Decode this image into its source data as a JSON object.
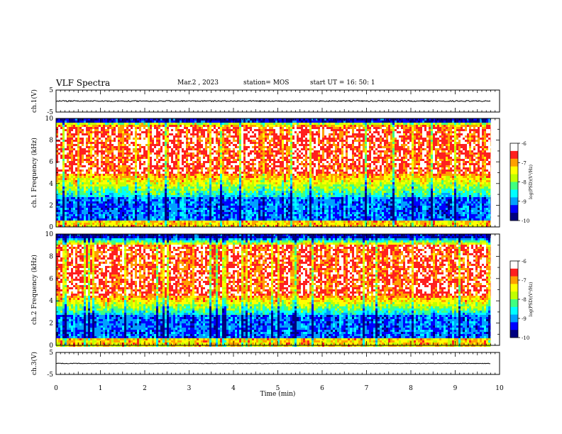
{
  "header": {
    "title": "VLF Spectra",
    "date": "Mar.2 , 2023",
    "station": "station= MOS",
    "start": "start UT = 16: 50: 1"
  },
  "colors": {
    "colormap": [
      "#000080",
      "#0000ff",
      "#00a0ff",
      "#00ffff",
      "#40ff80",
      "#c0ff00",
      "#ffff00",
      "#ffa000",
      "#ff2020",
      "#ffffff"
    ],
    "trace": "#000000",
    "axis": "#000000"
  },
  "chart_data": [
    {
      "type": "line",
      "name": "ch1-waveform",
      "ylabel": "ch.1(V)",
      "ylim": [
        -5,
        5
      ],
      "yticks": [
        "5",
        "-5"
      ],
      "xlim": [
        0,
        10
      ],
      "level": 0
    },
    {
      "type": "heatmap",
      "name": "ch1-spectrogram",
      "ylabel": "ch.1 Frequency (kHz)",
      "ylim": [
        0,
        10
      ],
      "yticks": [
        "0",
        "2",
        "4",
        "6",
        "8",
        "10"
      ],
      "xlim": [
        0,
        10
      ],
      "data_extent_min": 9.8,
      "intense_band_khz": [
        5,
        9.3
      ],
      "colorbar": {
        "label": "log(PSD)(V²/Hz)",
        "ticks": [
          "-6",
          "-7",
          "-8",
          "-9",
          "-10"
        ],
        "range": [
          -10,
          -6
        ]
      }
    },
    {
      "type": "heatmap",
      "name": "ch2-spectrogram",
      "ylabel": "ch.2 Frequency (kHz)",
      "ylim": [
        0,
        10
      ],
      "yticks": [
        "0",
        "2",
        "4",
        "6",
        "8",
        "10"
      ],
      "xlim": [
        0,
        10
      ],
      "data_extent_min": 9.8,
      "intense_band_khz": [
        4.5,
        9
      ],
      "colorbar": {
        "label": "log(PSD)(V²/Hz)",
        "ticks": [
          "-6",
          "-7",
          "-8",
          "-9",
          "-10"
        ],
        "range": [
          -10,
          -6
        ]
      }
    },
    {
      "type": "line",
      "name": "ch3-waveform",
      "ylabel": "ch.3(V)",
      "ylim": [
        -5,
        5
      ],
      "yticks": [
        "5",
        "-5"
      ],
      "xlim": [
        0,
        10
      ],
      "level": 0
    }
  ],
  "xaxis": {
    "label": "Time (min)",
    "ticks": [
      "0",
      "1",
      "2",
      "3",
      "4",
      "5",
      "6",
      "7",
      "8",
      "9",
      "10"
    ]
  }
}
